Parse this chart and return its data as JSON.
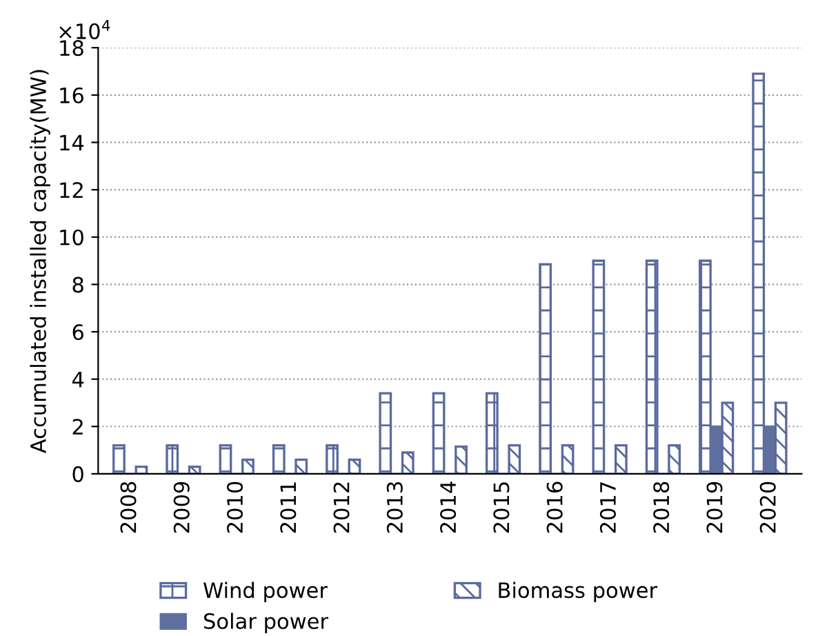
{
  "chart_data": {
    "type": "bar",
    "ylabel": "Accumulated installed capacity(MW)",
    "categories": [
      "2008",
      "2009",
      "2010",
      "2011",
      "2012",
      "2013",
      "2014",
      "2015",
      "2016",
      "2017",
      "2018",
      "2019",
      "2020"
    ],
    "series": [
      {
        "name": "Wind power",
        "color": "#5a6a9e",
        "values": [
          1.2,
          1.2,
          1.2,
          1.2,
          1.2,
          3.4,
          3.4,
          3.4,
          8.85,
          9.0,
          9.0,
          9.0,
          16.9
        ]
      },
      {
        "name": "Solar power",
        "color": "#5f6f9f",
        "values": [
          0,
          0,
          0,
          0,
          0,
          0,
          0,
          0,
          0,
          0,
          0,
          2.0,
          2.0
        ]
      },
      {
        "name": "Biomass power",
        "color": "#5a6a9e",
        "values": [
          0.3,
          0.3,
          0.6,
          0.6,
          0.6,
          0.9,
          1.15,
          1.2,
          1.2,
          1.2,
          1.2,
          3.0,
          3.0
        ]
      }
    ],
    "ylim": [
      0,
      18
    ],
    "yticks": [
      0,
      2,
      4,
      6,
      8,
      10,
      12,
      14,
      16,
      18
    ],
    "annotations": [
      "×10$^{4}$"
    ],
    "grid": "y",
    "legend": "bottom"
  }
}
